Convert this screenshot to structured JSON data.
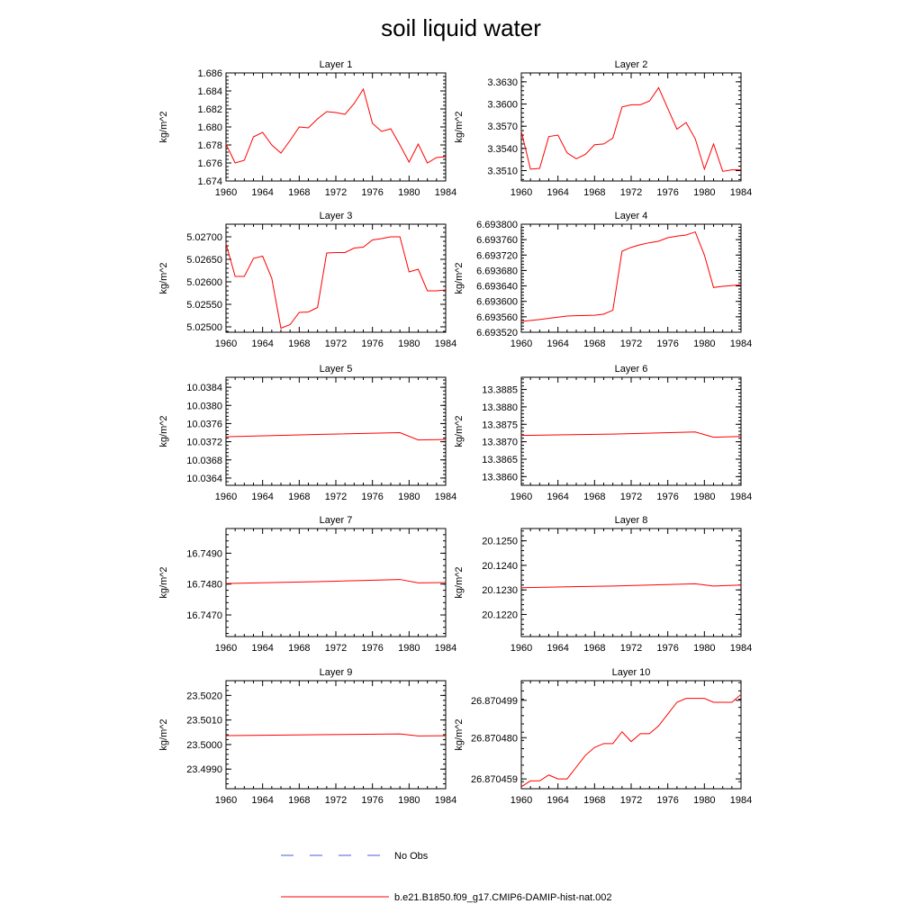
{
  "figure": {
    "title": "soil liquid water",
    "legend": [
      {
        "label": "No Obs",
        "color": "#4b5bd6",
        "style": "dashed"
      },
      {
        "label": "b.e21.B1850.f09_g17.CMIP6-DAMIP-hist-nat.002",
        "color": "#ff0000",
        "style": "solid"
      }
    ]
  },
  "chart_data": [
    {
      "type": "line",
      "title": "Layer 1",
      "ylabel": "kg/m^2",
      "xlim": [
        1960,
        1984
      ],
      "xticks": [
        1960,
        1964,
        1968,
        1972,
        1976,
        1980,
        1984
      ],
      "ylim": [
        1.674,
        1.686
      ],
      "yticks": [
        "1.674",
        "1.676",
        "1.678",
        "1.680",
        "1.682",
        "1.684",
        "1.686"
      ],
      "series": [
        {
          "x": [
            1960,
            1961,
            1962,
            1963,
            1964,
            1965,
            1966,
            1967,
            1968,
            1969,
            1970,
            1971,
            1972,
            1973,
            1974,
            1975,
            1976,
            1977,
            1978,
            1979,
            1980,
            1981,
            1982,
            1983,
            1984
          ],
          "y": [
            1.6781,
            1.676,
            1.6763,
            1.6789,
            1.6794,
            1.678,
            1.6771,
            1.6785,
            1.68,
            1.6799,
            1.6809,
            1.6817,
            1.6816,
            1.6814,
            1.6826,
            1.6842,
            1.6804,
            1.6795,
            1.6798,
            1.678,
            1.6761,
            1.6781,
            1.676,
            1.6766,
            1.6767
          ]
        }
      ]
    },
    {
      "type": "line",
      "title": "Layer 2",
      "ylabel": "kg/m^2",
      "xlim": [
        1960,
        1984
      ],
      "xticks": [
        1960,
        1964,
        1968,
        1972,
        1976,
        1980,
        1984
      ],
      "ylim": [
        3.3496,
        3.3642
      ],
      "yticks": [
        "3.3510",
        "3.3540",
        "3.3570",
        "3.3600",
        "3.3630"
      ],
      "series": [
        {
          "x": [
            1960,
            1961,
            1962,
            1963,
            1964,
            1965,
            1966,
            1967,
            1968,
            1969,
            1970,
            1971,
            1972,
            1973,
            1974,
            1975,
            1976,
            1977,
            1978,
            1979,
            1980,
            1981,
            1982,
            1983,
            1984
          ],
          "y": [
            3.3563,
            3.3512,
            3.3513,
            3.3556,
            3.3558,
            3.3534,
            3.3526,
            3.3532,
            3.3545,
            3.3546,
            3.3554,
            3.3596,
            3.3599,
            3.3599,
            3.3604,
            3.3622,
            3.3594,
            3.3566,
            3.3575,
            3.3553,
            3.3512,
            3.3546,
            3.3509,
            3.3511,
            3.3511
          ]
        }
      ]
    },
    {
      "type": "line",
      "title": "Layer 3",
      "ylabel": "kg/m^2",
      "xlim": [
        1960,
        1984
      ],
      "xticks": [
        1960,
        1964,
        1968,
        1972,
        1976,
        1980,
        1984
      ],
      "ylim": [
        5.02488,
        5.02728
      ],
      "yticks": [
        "5.02500",
        "5.02550",
        "5.02600",
        "5.02650",
        "5.02700"
      ],
      "series": [
        {
          "x": [
            1960,
            1961,
            1962,
            1963,
            1964,
            1965,
            1966,
            1967,
            1968,
            1969,
            1970,
            1971,
            1972,
            1973,
            1974,
            1975,
            1976,
            1977,
            1978,
            1979,
            1980,
            1981,
            1982,
            1983,
            1984
          ],
          "y": [
            5.02685,
            5.02612,
            5.02612,
            5.02652,
            5.02657,
            5.02608,
            5.02497,
            5.02505,
            5.02532,
            5.02533,
            5.02543,
            5.02664,
            5.02665,
            5.02665,
            5.02675,
            5.02677,
            5.02693,
            5.02696,
            5.027,
            5.027,
            5.02622,
            5.02628,
            5.0258,
            5.0258,
            5.02582
          ]
        }
      ]
    },
    {
      "type": "line",
      "title": "Layer 4",
      "ylabel": "kg/m^2",
      "xlim": [
        1960,
        1984
      ],
      "xticks": [
        1960,
        1964,
        1968,
        1972,
        1976,
        1980,
        1984
      ],
      "ylim": [
        6.69352,
        6.6938
      ],
      "yticks": [
        "6.693520",
        "6.693560",
        "6.693600",
        "6.693640",
        "6.693680",
        "6.693720",
        "6.693760",
        "6.693800"
      ],
      "series": [
        {
          "x": [
            1960,
            1962,
            1964,
            1965,
            1966,
            1968,
            1969,
            1970,
            1971,
            1972,
            1973,
            1974,
            1975,
            1976,
            1977,
            1978,
            1979,
            1980,
            1981,
            1982,
            1984
          ],
          "y": [
            6.693548,
            6.693553,
            6.693559,
            6.693562,
            6.693563,
            6.693564,
            6.693567,
            6.693577,
            6.69373,
            6.69374,
            6.693747,
            6.693752,
            6.693756,
            6.693765,
            6.693769,
            6.693772,
            6.69378,
            6.69372,
            6.693636,
            6.693639,
            6.693643
          ]
        }
      ]
    },
    {
      "type": "line",
      "title": "Layer 5",
      "ylabel": "kg/m^2",
      "xlim": [
        1960,
        1984
      ],
      "xticks": [
        1960,
        1964,
        1968,
        1972,
        1976,
        1980,
        1984
      ],
      "ylim": [
        10.03624,
        10.03862
      ],
      "yticks": [
        "10.0364",
        "10.0368",
        "10.0372",
        "10.0376",
        "10.0380",
        "10.0384"
      ],
      "series": [
        {
          "x": [
            1960,
            1970,
            1979,
            1981,
            1984
          ],
          "y": [
            10.03731,
            10.03736,
            10.0374,
            10.03724,
            10.03725
          ]
        }
      ]
    },
    {
      "type": "line",
      "title": "Layer 6",
      "ylabel": "kg/m^2",
      "xlim": [
        1960,
        1984
      ],
      "xticks": [
        1960,
        1964,
        1968,
        1972,
        1976,
        1980,
        1984
      ],
      "ylim": [
        13.38575,
        13.38885
      ],
      "yticks": [
        "13.3860",
        "13.3865",
        "13.3870",
        "13.3875",
        "13.3880",
        "13.3885"
      ],
      "series": [
        {
          "x": [
            1960,
            1970,
            1979,
            1981,
            1984
          ],
          "y": [
            13.38718,
            13.38722,
            13.38728,
            13.38713,
            13.38715
          ]
        }
      ]
    },
    {
      "type": "line",
      "title": "Layer 7",
      "ylabel": "kg/m^2",
      "xlim": [
        1960,
        1984
      ],
      "xticks": [
        1960,
        1964,
        1968,
        1972,
        1976,
        1980,
        1984
      ],
      "ylim": [
        16.7463,
        16.7498
      ],
      "yticks": [
        "16.7470",
        "16.7480",
        "16.7490"
      ],
      "series": [
        {
          "x": [
            1960,
            1970,
            1979,
            1981,
            1984
          ],
          "y": [
            16.74802,
            16.74808,
            16.74815,
            16.74804,
            16.74805
          ]
        }
      ]
    },
    {
      "type": "line",
      "title": "Layer 8",
      "ylabel": "kg/m^2",
      "xlim": [
        1960,
        1984
      ],
      "xticks": [
        1960,
        1964,
        1968,
        1972,
        1976,
        1980,
        1984
      ],
      "ylim": [
        20.1211,
        20.1255
      ],
      "yticks": [
        "20.1220",
        "20.1230",
        "20.1240",
        "20.1250"
      ],
      "series": [
        {
          "x": [
            1960,
            1970,
            1979,
            1981,
            1984
          ],
          "y": [
            20.12309,
            20.12316,
            20.12325,
            20.12316,
            20.1232
          ]
        }
      ]
    },
    {
      "type": "line",
      "title": "Layer 9",
      "ylabel": "kg/m^2",
      "xlim": [
        1960,
        1984
      ],
      "xticks": [
        1960,
        1964,
        1968,
        1972,
        1976,
        1980,
        1984
      ],
      "ylim": [
        23.4982,
        23.5026
      ],
      "yticks": [
        "23.4990",
        "23.5000",
        "23.5010",
        "23.5020"
      ],
      "series": [
        {
          "x": [
            1960,
            1970,
            1979,
            1981,
            1984
          ],
          "y": [
            23.50036,
            23.5004,
            23.50043,
            23.50035,
            23.50036
          ]
        }
      ]
    },
    {
      "type": "line",
      "title": "Layer 10",
      "ylabel": "kg/m^2",
      "xlim": [
        1960,
        1984
      ],
      "xticks": [
        1960,
        1964,
        1968,
        1972,
        1976,
        1980,
        1984
      ],
      "ylim": [
        26.870454,
        26.870509
      ],
      "yticks": [
        "26.870459",
        "26.870480",
        "26.870499"
      ],
      "series": [
        {
          "x": [
            1960,
            1961,
            1962,
            1963,
            1964,
            1965,
            1966,
            1967,
            1968,
            1969,
            1970,
            1971,
            1972,
            1973,
            1974,
            1975,
            1976,
            1977,
            1978,
            1979,
            1980,
            1981,
            1982,
            1983,
            1984
          ],
          "y": [
            26.870455,
            26.870458,
            26.870458,
            26.870461,
            26.870459,
            26.870459,
            26.870465,
            26.870471,
            26.870475,
            26.870477,
            26.870477,
            26.870483,
            26.870478,
            26.870482,
            26.870482,
            26.870486,
            26.870492,
            26.870498,
            26.8705,
            26.8705,
            26.8705,
            26.870498,
            26.870498,
            26.870498,
            26.870502
          ]
        }
      ]
    }
  ]
}
